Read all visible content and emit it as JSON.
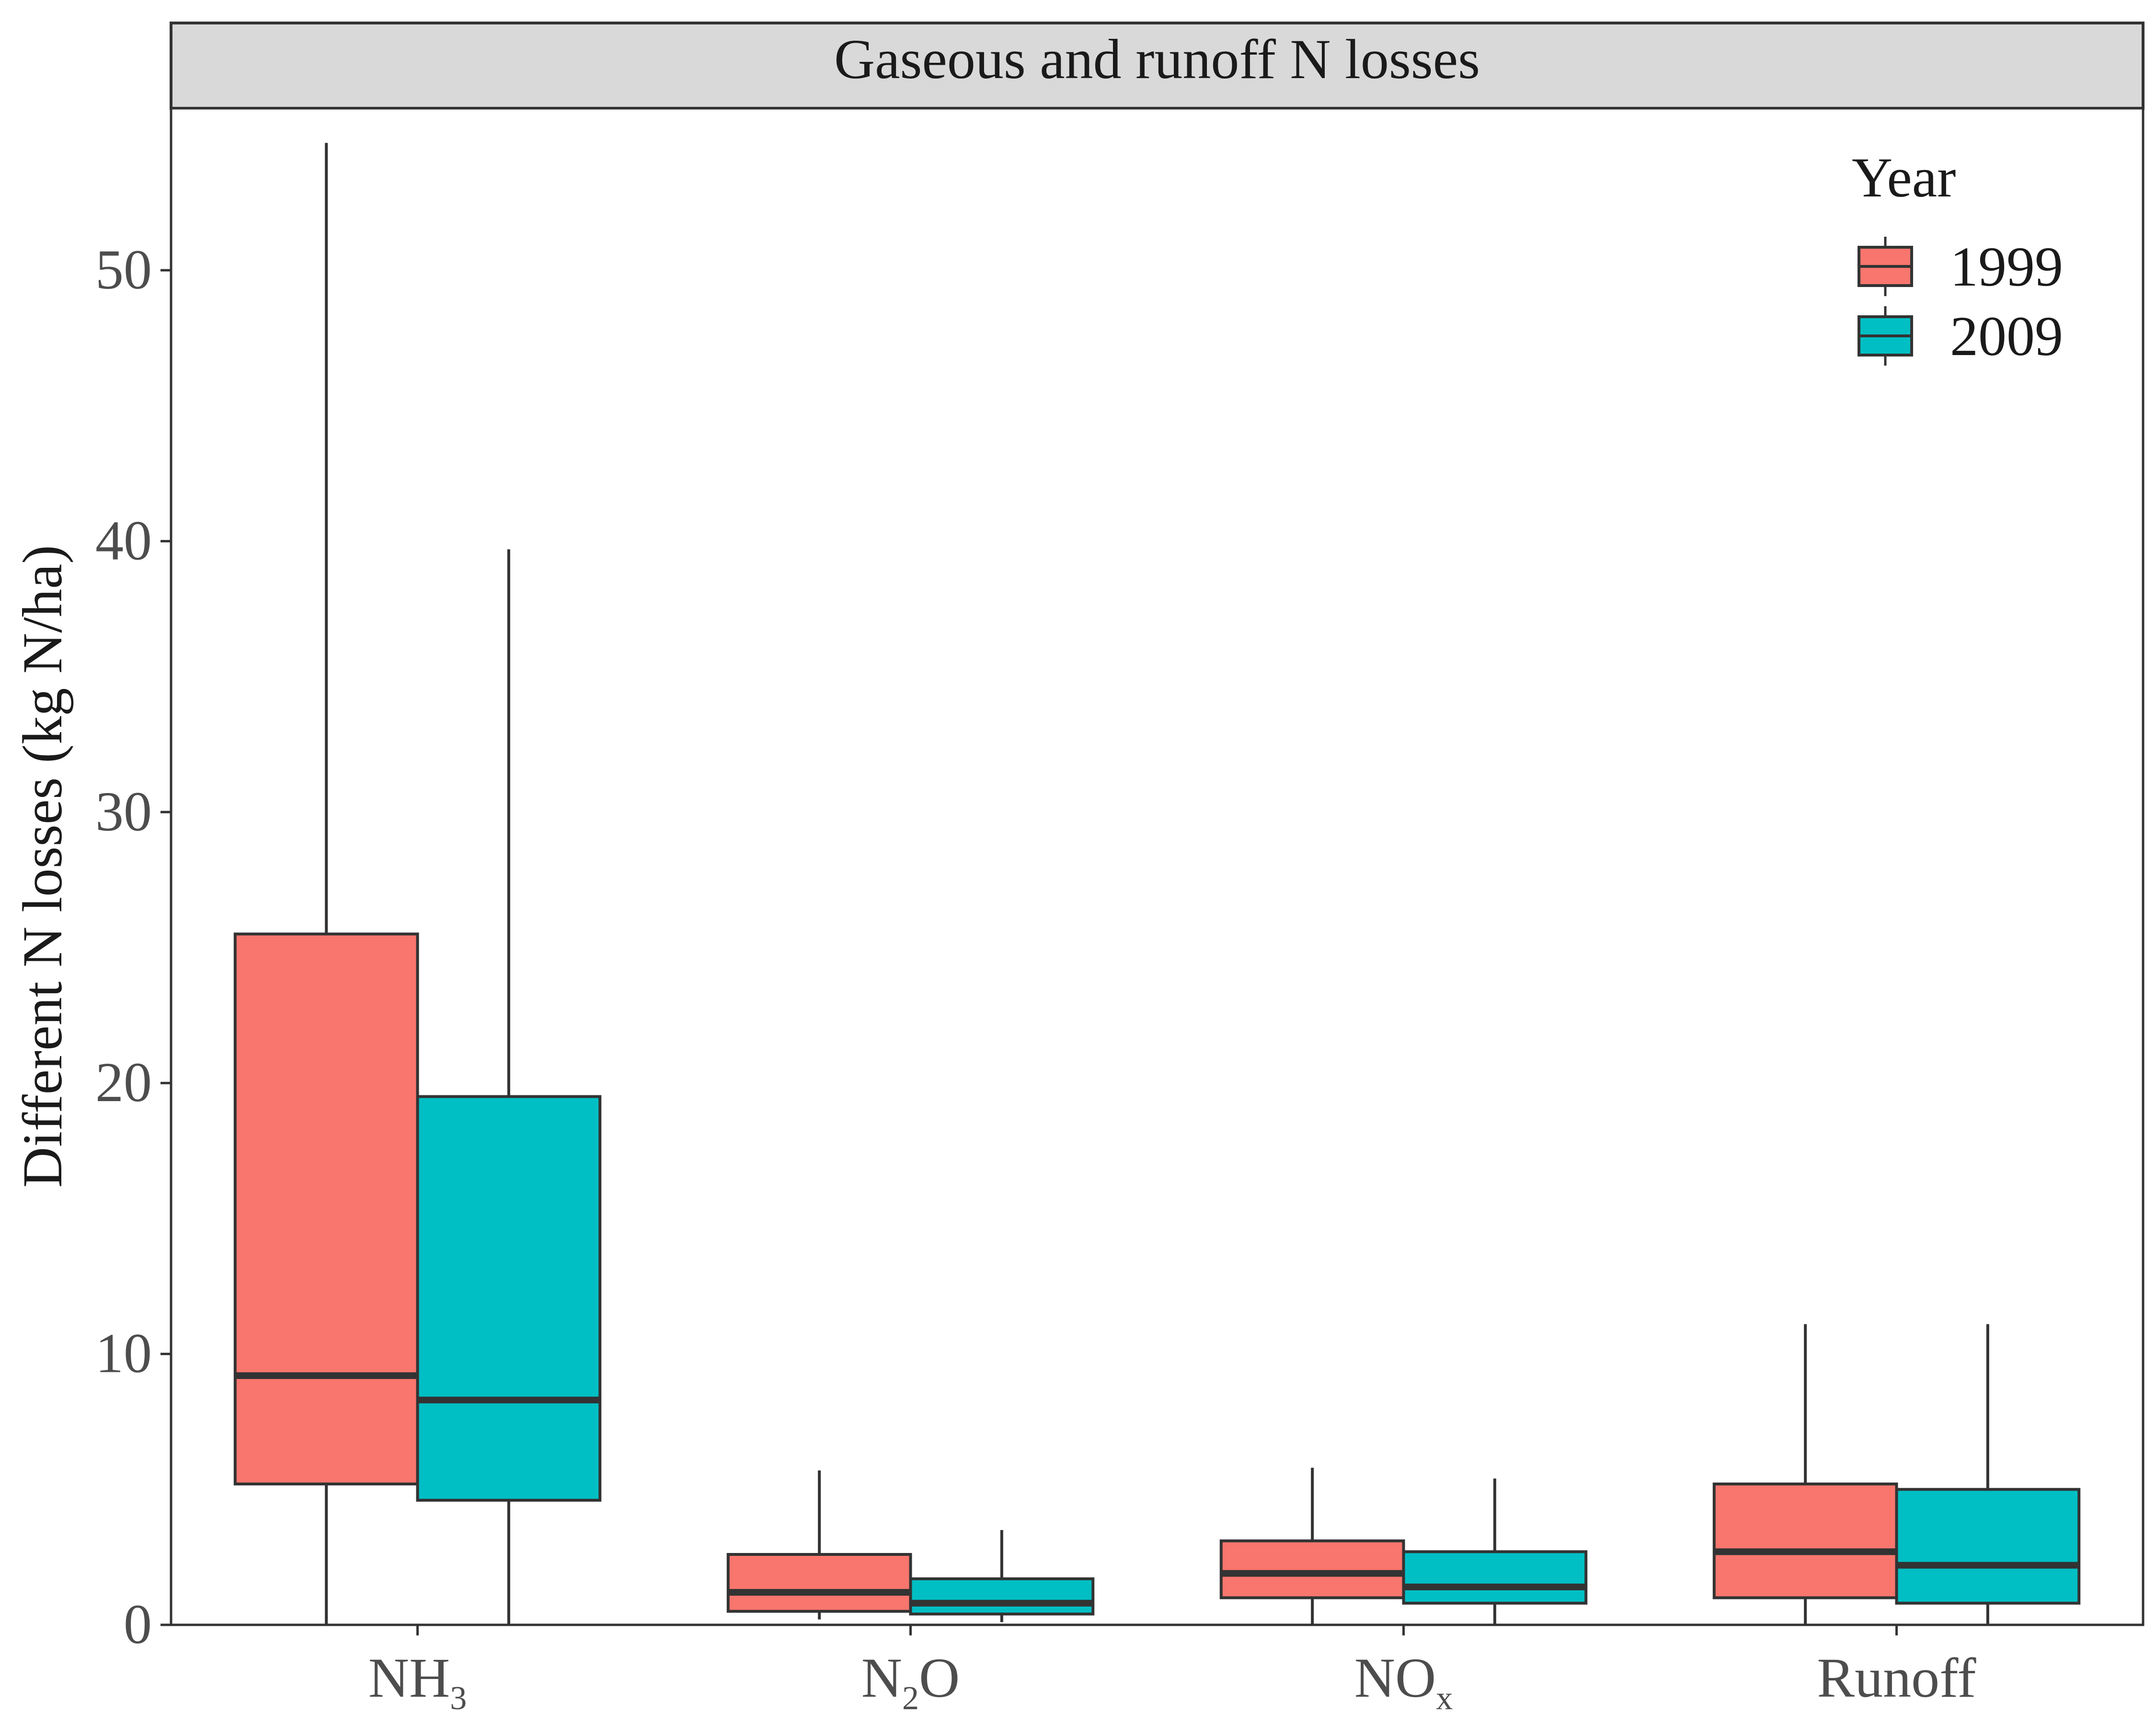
{
  "chart_data": {
    "type": "box",
    "strip_title": "Gaseous and runoff N losses",
    "ylabel": "Different N losses (kg N/ha)",
    "xlabel": "",
    "ylim": [
      0,
      56
    ],
    "y_ticks": [
      "0",
      "10",
      "20",
      "30",
      "40",
      "50"
    ],
    "categories": [
      {
        "base": "NH",
        "sub": "3",
        "rest": ""
      },
      {
        "base": "N",
        "sub": "2",
        "rest": "O"
      },
      {
        "base": "NO",
        "sub": "x",
        "rest": ""
      },
      {
        "base": "Runoff",
        "sub": "",
        "rest": ""
      }
    ],
    "grid": false,
    "legend_position": "top-right",
    "legend_title": "Year",
    "series": [
      {
        "name": "1999",
        "color": "#F8766D",
        "boxes": [
          {
            "whisker_low": 0.0,
            "q1": 5.2,
            "median": 9.2,
            "q3": 25.5,
            "whisker_high": 54.7
          },
          {
            "whisker_low": 0.2,
            "q1": 0.5,
            "median": 1.2,
            "q3": 2.6,
            "whisker_high": 5.7
          },
          {
            "whisker_low": 0.0,
            "q1": 1.0,
            "median": 1.9,
            "q3": 3.1,
            "whisker_high": 5.8
          },
          {
            "whisker_low": 0.0,
            "q1": 1.0,
            "median": 2.7,
            "q3": 5.2,
            "whisker_high": 11.1
          }
        ]
      },
      {
        "name": "2009",
        "color": "#00BFC4",
        "boxes": [
          {
            "whisker_low": 0.0,
            "q1": 4.6,
            "median": 8.3,
            "q3": 19.5,
            "whisker_high": 39.7
          },
          {
            "whisker_low": 0.1,
            "q1": 0.4,
            "median": 0.8,
            "q3": 1.7,
            "whisker_high": 3.5
          },
          {
            "whisker_low": 0.0,
            "q1": 0.8,
            "median": 1.4,
            "q3": 2.7,
            "whisker_high": 5.4
          },
          {
            "whisker_low": 0.0,
            "q1": 0.8,
            "median": 2.2,
            "q3": 5.0,
            "whisker_high": 11.1
          }
        ]
      }
    ]
  }
}
